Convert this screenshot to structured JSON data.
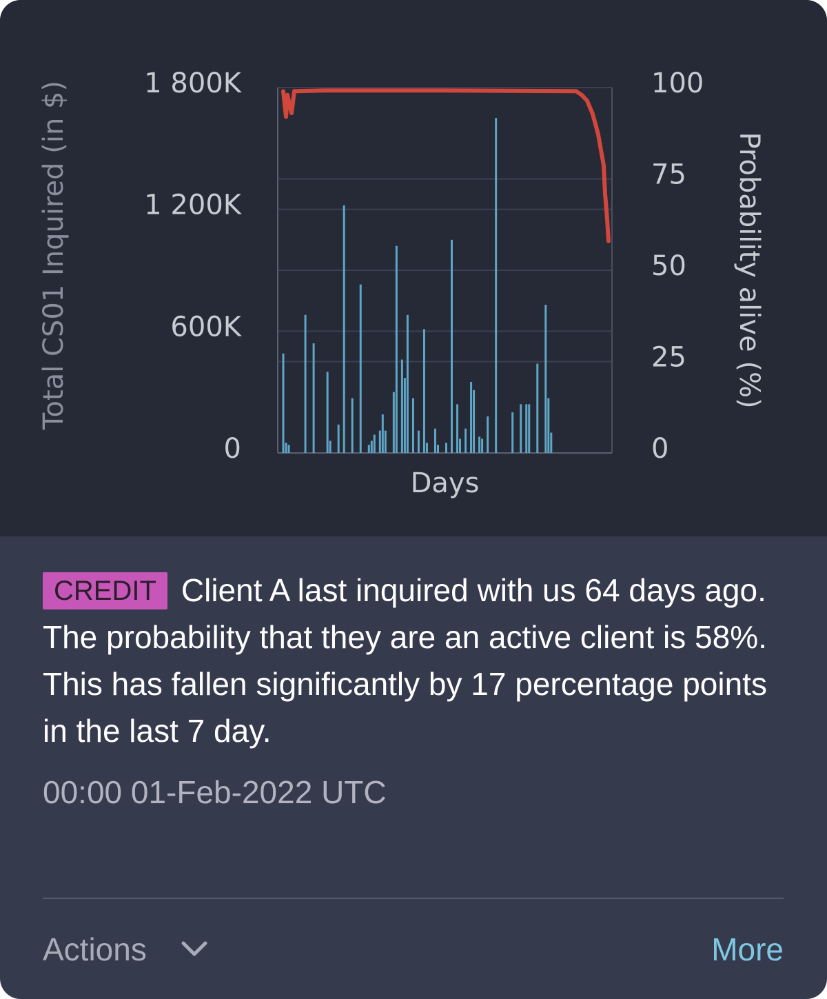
{
  "chart_data": {
    "type": "combo",
    "x_label": "Days",
    "y_label": "Total CS01 Inquired (in $)",
    "y2_label": "Probability alive (%)",
    "xlim": [
      0,
      121
    ],
    "ylim": [
      0,
      1800000
    ],
    "yticks": [
      0,
      {
        "value": 600000,
        "label": "600K"
      },
      {
        "value": 1200000,
        "label": "1 200K"
      },
      {
        "value": 1800000,
        "label": "1 800K"
      }
    ],
    "y2lim": [
      0,
      100
    ],
    "y2ticks": [
      0,
      25,
      50,
      75,
      100
    ],
    "grid": true,
    "series": [
      {
        "type": "bar",
        "color": "#5fa6c6",
        "x": [
          2,
          3,
          4,
          10,
          13,
          18,
          19,
          22,
          24,
          27,
          30,
          33,
          34,
          35,
          37,
          38,
          39,
          42,
          43,
          45,
          46,
          47,
          49,
          51,
          53,
          54,
          57,
          58,
          61,
          63,
          65,
          66,
          68,
          70,
          71,
          73,
          74,
          76,
          79,
          85,
          88,
          90,
          91,
          94,
          97,
          98,
          99
        ],
        "values": [
          490000,
          50000,
          40000,
          680000,
          540000,
          400000,
          60000,
          140000,
          1220000,
          270000,
          830000,
          40000,
          60000,
          90000,
          110000,
          190000,
          110000,
          300000,
          1020000,
          460000,
          370000,
          680000,
          270000,
          110000,
          610000,
          50000,
          120000,
          40000,
          50000,
          1050000,
          240000,
          70000,
          120000,
          350000,
          310000,
          80000,
          70000,
          180000,
          1650000,
          200000,
          240000,
          240000,
          240000,
          440000,
          730000,
          270000,
          100000
        ]
      },
      {
        "type": "line",
        "axis": "y2",
        "color": "#d2473b",
        "x": [
          2,
          3,
          3.5,
          5,
          6,
          7,
          17,
          60,
          108,
          110,
          112,
          114,
          116,
          118,
          118.5,
          119.25,
          119.75
        ],
        "values": [
          99,
          92,
          98,
          93,
          99,
          99,
          99.2,
          99.2,
          99,
          98,
          96.4,
          92.8,
          87.2,
          78.7,
          71,
          64,
          58
        ]
      }
    ]
  },
  "tag": "CREDIT",
  "message": "Client A last inquired with us 64 days ago. The probability that they are an active client is 58%. This has fallen significantly by 17 percentage points in the last 7 day.",
  "timestamp": "00:00 01-Feb-2022 UTC",
  "actions": "Actions",
  "more": "More"
}
